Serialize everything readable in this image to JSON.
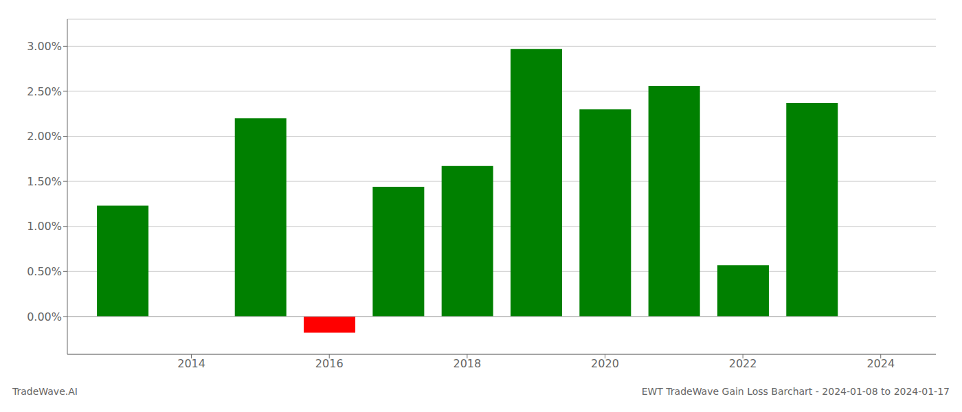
{
  "chart_data": {
    "type": "bar",
    "title": "EWT TradeWave Gain Loss Barchart - 2024-01-08 to 2024-01-17",
    "annotations": [
      "TradeWave.AI"
    ],
    "x": [
      2013,
      2015,
      2016,
      2017,
      2018,
      2019,
      2020,
      2021,
      2022,
      2023
    ],
    "values": [
      1.23,
      2.2,
      -0.18,
      1.44,
      1.67,
      2.97,
      2.3,
      2.56,
      0.57,
      2.37
    ],
    "colors": [
      "#008000",
      "#008000",
      "#ff0000",
      "#008000",
      "#008000",
      "#008000",
      "#008000",
      "#008000",
      "#008000",
      "#008000"
    ],
    "xlim": [
      2012.2,
      2024.8
    ],
    "xticks": [
      2014,
      2016,
      2018,
      2020,
      2022,
      2024
    ],
    "ylim": [
      -0.42,
      3.3
    ],
    "yticks": [
      {
        "value": 0.0,
        "label": "0.00%"
      },
      {
        "value": 0.5,
        "label": "0.50%"
      },
      {
        "value": 1.0,
        "label": "1.00%"
      },
      {
        "value": 1.5,
        "label": "1.50%"
      },
      {
        "value": 2.0,
        "label": "2.00%"
      },
      {
        "value": 2.5,
        "label": "2.50%"
      },
      {
        "value": 3.0,
        "label": "3.00%"
      }
    ],
    "grid": "y"
  }
}
